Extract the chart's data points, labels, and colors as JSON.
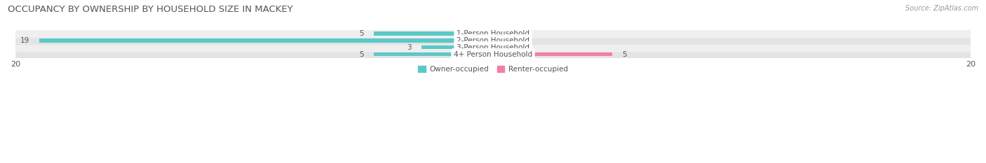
{
  "title": "OCCUPANCY BY OWNERSHIP BY HOUSEHOLD SIZE IN MACKEY",
  "source": "Source: ZipAtlas.com",
  "categories": [
    "1-Person Household",
    "2-Person Household",
    "3-Person Household",
    "4+ Person Household"
  ],
  "owner_values": [
    5,
    19,
    3,
    5
  ],
  "renter_values": [
    1,
    0,
    1,
    5
  ],
  "owner_color": "#5BC8C8",
  "renter_color": "#F080A0",
  "row_colors": [
    "#EFEFEF",
    "#E4E4E4",
    "#EFEFEF",
    "#E4E4E4"
  ],
  "axis_max": 20,
  "legend_owner": "Owner-occupied",
  "legend_renter": "Renter-occupied",
  "bar_height": 0.55,
  "title_fontsize": 9.5,
  "label_fontsize": 7.5,
  "tick_fontsize": 8,
  "source_fontsize": 7,
  "text_color": "#555555",
  "source_color": "#999999"
}
